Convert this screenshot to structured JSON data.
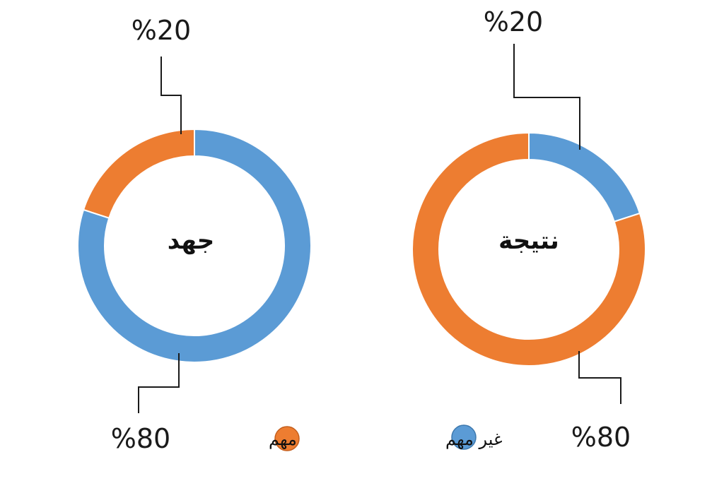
{
  "chart_data": [
    {
      "type": "donut",
      "center_label": "جهد",
      "slices": [
        {
          "category": "مهم",
          "value": 20,
          "label": "%20",
          "color": "#ED7D31"
        },
        {
          "category": "غير مهم",
          "value": 80,
          "label": "%80",
          "color": "#5B9BD5"
        }
      ]
    },
    {
      "type": "donut",
      "center_label": "نتيجة",
      "slices": [
        {
          "category": "غير مهم",
          "value": 20,
          "label": "%20",
          "color": "#5B9BD5"
        },
        {
          "category": "مهم",
          "value": 80,
          "label": "%80",
          "color": "#ED7D31"
        }
      ]
    }
  ],
  "legend": [
    {
      "label": "مهم",
      "color": "#ED7D31"
    },
    {
      "label": "غير مهم",
      "color": "#5B9BD5"
    }
  ]
}
